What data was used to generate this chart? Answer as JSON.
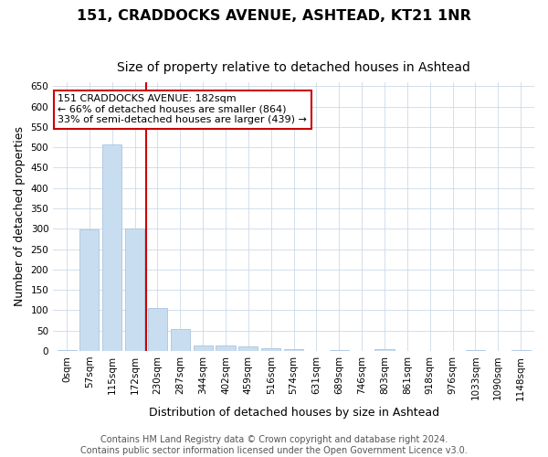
{
  "title_line1": "151, CRADDOCKS AVENUE, ASHTEAD, KT21 1NR",
  "title_line2": "Size of property relative to detached houses in Ashtead",
  "xlabel": "Distribution of detached houses by size in Ashtead",
  "ylabel": "Number of detached properties",
  "bar_color": "#c9ddf0",
  "bar_edge_color": "#aac4de",
  "vline_color": "#cc0000",
  "annotation_text_line1": "151 CRADDOCKS AVENUE: 182sqm",
  "annotation_text_line2": "← 66% of detached houses are smaller (864)",
  "annotation_text_line3": "33% of semi-detached houses are larger (439) →",
  "annotation_box_color": "#cc0000",
  "bins": [
    "0sqm",
    "57sqm",
    "115sqm",
    "172sqm",
    "230sqm",
    "287sqm",
    "344sqm",
    "402sqm",
    "459sqm",
    "516sqm",
    "574sqm",
    "631sqm",
    "689sqm",
    "746sqm",
    "803sqm",
    "861sqm",
    "918sqm",
    "976sqm",
    "1033sqm",
    "1090sqm",
    "1148sqm"
  ],
  "values": [
    3,
    298,
    507,
    300,
    106,
    53,
    13,
    13,
    11,
    7,
    4,
    0,
    3,
    0,
    4,
    0,
    0,
    0,
    3,
    0,
    3
  ],
  "ylim": [
    0,
    660
  ],
  "yticks": [
    0,
    50,
    100,
    150,
    200,
    250,
    300,
    350,
    400,
    450,
    500,
    550,
    600,
    650
  ],
  "footer_text": "Contains HM Land Registry data © Crown copyright and database right 2024.\nContains public sector information licensed under the Open Government Licence v3.0.",
  "background_color": "#ffffff",
  "grid_color": "#ccd9e8",
  "title_fontsize": 11.5,
  "subtitle_fontsize": 10,
  "axis_label_fontsize": 9,
  "tick_fontsize": 7.5,
  "annotation_fontsize": 8,
  "footer_fontsize": 7
}
